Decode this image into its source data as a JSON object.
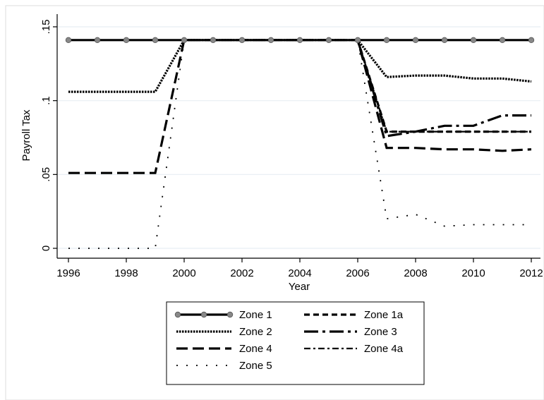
{
  "chart_data": {
    "type": "line",
    "title": "",
    "xlabel": "Year",
    "ylabel": "Payroll Tax",
    "xlim": [
      1996,
      2012
    ],
    "ylim": [
      0,
      0.15
    ],
    "x_ticks": [
      "1996",
      "1998",
      "2000",
      "2002",
      "2004",
      "2006",
      "2008",
      "2010",
      "2012"
    ],
    "y_ticks": [
      "0",
      ".05",
      ".1",
      ".15"
    ],
    "grid": "horizontal",
    "legend_position": "bottom",
    "x": [
      1996,
      1997,
      1998,
      1999,
      2000,
      2001,
      2002,
      2003,
      2004,
      2005,
      2006,
      2007,
      2008,
      2009,
      2010,
      2011,
      2012
    ],
    "series": [
      {
        "name": "Zone 1",
        "style": "solid-markers",
        "values": [
          0.141,
          0.141,
          0.141,
          0.141,
          0.141,
          0.141,
          0.141,
          0.141,
          0.141,
          0.141,
          0.141,
          0.141,
          0.141,
          0.141,
          0.141,
          0.141,
          0.141
        ]
      },
      {
        "name": "Zone 1a",
        "style": "short-dash",
        "values": [
          null,
          null,
          null,
          null,
          null,
          null,
          null,
          null,
          null,
          null,
          0.141,
          0.079,
          0.079,
          0.079,
          0.079,
          0.079,
          0.079
        ]
      },
      {
        "name": "Zone 2",
        "style": "dotted",
        "values": [
          0.106,
          0.106,
          0.106,
          0.106,
          0.141,
          0.141,
          0.141,
          0.141,
          0.141,
          0.141,
          0.141,
          0.116,
          0.117,
          0.117,
          0.115,
          0.115,
          0.113
        ]
      },
      {
        "name": "Zone 3",
        "style": "long-dash-dot",
        "values": [
          null,
          null,
          null,
          null,
          null,
          null,
          null,
          null,
          null,
          null,
          0.141,
          0.076,
          0.079,
          0.083,
          0.083,
          0.09,
          0.09
        ]
      },
      {
        "name": "Zone 4",
        "style": "long-dash",
        "values": [
          0.051,
          0.051,
          0.051,
          0.051,
          0.141,
          0.141,
          0.141,
          0.141,
          0.141,
          0.141,
          0.141,
          0.068,
          0.068,
          0.067,
          0.067,
          0.066,
          0.067
        ]
      },
      {
        "name": "Zone 4a",
        "style": "dash-dot",
        "values": [
          null,
          null,
          null,
          null,
          null,
          null,
          null,
          null,
          null,
          null,
          0.141,
          0.079,
          0.079,
          0.079,
          0.079,
          0.079,
          0.079
        ]
      },
      {
        "name": "Zone 5",
        "style": "sparse-dots",
        "values": [
          0.0,
          0.0,
          0.0,
          0.0,
          0.141,
          0.141,
          0.141,
          0.141,
          0.141,
          0.141,
          0.141,
          0.02,
          0.023,
          0.015,
          0.016,
          0.016,
          0.016
        ]
      }
    ]
  }
}
